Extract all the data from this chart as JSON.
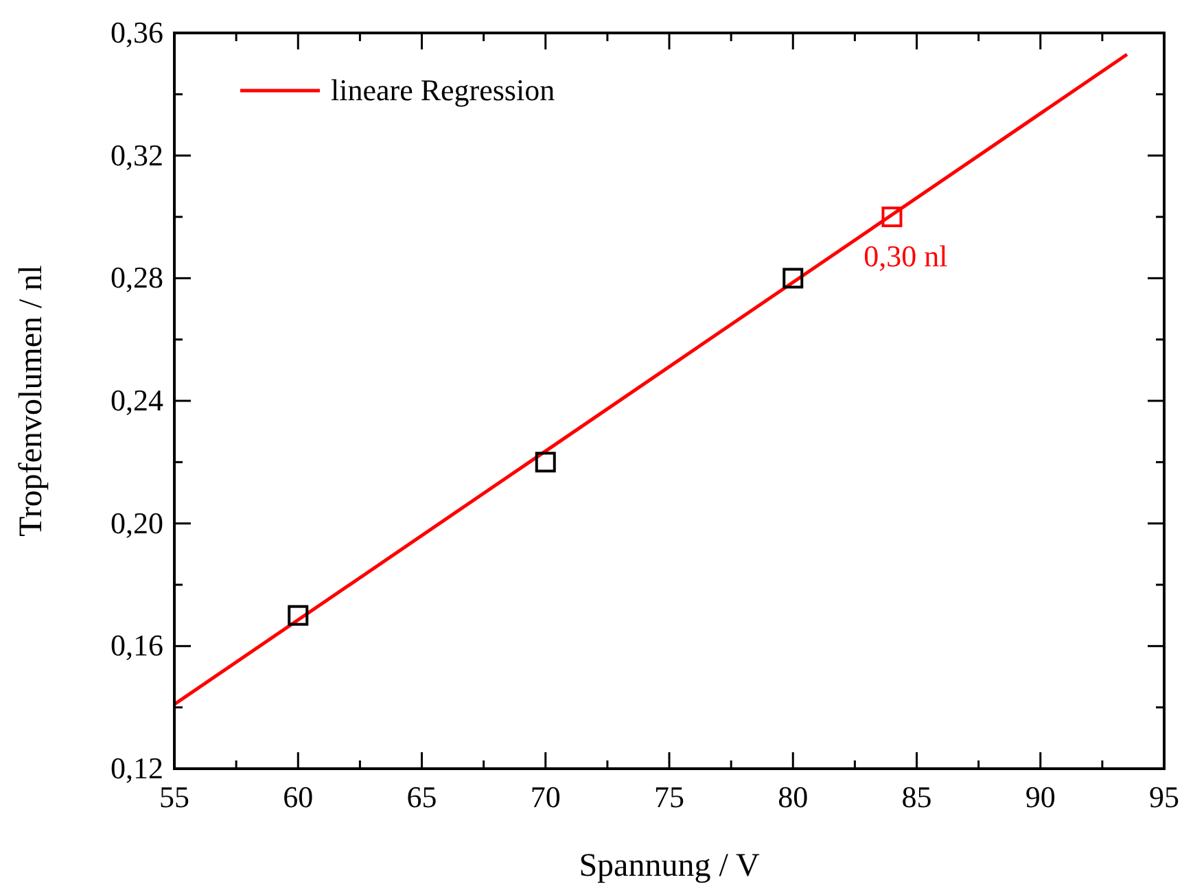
{
  "chart_data": {
    "type": "scatter",
    "xlabel": "Spannung / V",
    "ylabel": "Tropfenvolumen / nl",
    "xlim": [
      55,
      95
    ],
    "xticks": [
      55,
      {
        "value": 57.5,
        "label": null
      },
      60,
      {
        "value": 62.5,
        "label": null
      },
      65,
      {
        "value": 67.5,
        "label": null
      },
      70,
      {
        "value": 72.5,
        "label": null
      },
      75,
      {
        "value": 77.5,
        "label": null
      },
      80,
      {
        "value": 82.5,
        "label": null
      },
      85,
      {
        "value": 87.5,
        "label": null
      },
      90,
      {
        "value": 92.5,
        "label": null
      },
      95
    ],
    "ylim": [
      0.12,
      0.36
    ],
    "yticks": [
      {
        "value": 0.12,
        "label": "0,12"
      },
      {
        "value": 0.14,
        "label": null
      },
      {
        "value": 0.16,
        "label": "0,16"
      },
      {
        "value": 0.18,
        "label": null
      },
      {
        "value": 0.2,
        "label": "0,20"
      },
      {
        "value": 0.22,
        "label": null
      },
      {
        "value": 0.24,
        "label": "0,24"
      },
      {
        "value": 0.26,
        "label": null
      },
      {
        "value": 0.28,
        "label": "0,28"
      },
      {
        "value": 0.3,
        "label": null
      },
      {
        "value": 0.32,
        "label": "0,32"
      },
      {
        "value": 0.34,
        "label": null
      },
      {
        "value": 0.36,
        "label": "0,36"
      }
    ],
    "marker": "square",
    "legend": "top left",
    "grid": false,
    "series": [
      {
        "type": "scatter",
        "color": "#000000",
        "x": [
          60,
          70,
          80
        ],
        "values": [
          0.17,
          0.22,
          0.28
        ]
      },
      {
        "type": "line",
        "name": "lineare Regression",
        "color": "#ff0000",
        "marker": "none",
        "line_style": "solid",
        "x": [
          55,
          93.5
        ],
        "values": [
          0.141,
          0.353
        ]
      },
      {
        "type": "scatter",
        "color": "#ff0000",
        "x": [
          84
        ],
        "values": [
          0.3
        ]
      }
    ],
    "annotations": [
      {
        "text": "0,30 nl",
        "x": 84,
        "y": 0.3
      }
    ]
  }
}
